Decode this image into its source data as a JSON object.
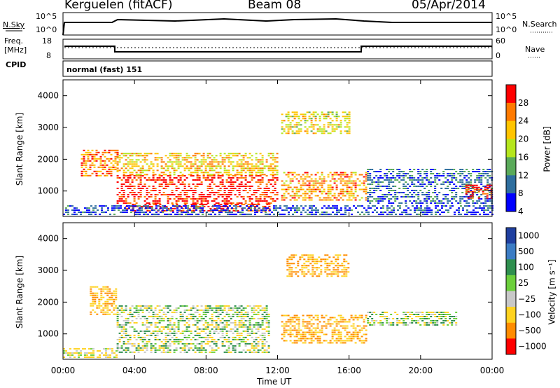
{
  "header": {
    "title": "Kerguelen (fitACF)",
    "beam": "Beam 08",
    "date": "05/Apr/2014"
  },
  "nsky_panel": {
    "left_label": "N.Sky",
    "right_label": "N.Search",
    "tick_hi": "10^5",
    "tick_lo": "10^0"
  },
  "freq_panel": {
    "left_label_1": "Freq.",
    "left_label_2": "[MHz]",
    "left_ticks": [
      "18",
      "8"
    ],
    "right_ticks": [
      "60",
      "0"
    ],
    "right_label": "Nave"
  },
  "cpid": {
    "label": "CPID",
    "value": "normal (fast) 151"
  },
  "axes": {
    "ylabel": "Slant Range [km]",
    "xlabel": "Time UT",
    "y_ticks": [
      "4000",
      "3000",
      "2000",
      "1000"
    ],
    "x_ticks": [
      "00:00",
      "04:00",
      "08:00",
      "12:00",
      "16:00",
      "20:00",
      "00:00"
    ]
  },
  "chart_data": [
    {
      "type": "heatmap",
      "name": "power",
      "ylabel": "Slant Range [km]",
      "xlabel": "Time UT",
      "xlim_hours": [
        0,
        24
      ],
      "ylim": [
        200,
        4500
      ],
      "colorbar": {
        "label": "Power [dB]",
        "ticks": [
          "28",
          "24",
          "20",
          "16",
          "12",
          "8",
          "4"
        ],
        "colors": [
          "#ff0000",
          "#ff7a00",
          "#ffc400",
          "#b5e61d",
          "#5aaa5a",
          "#2e6e9e",
          "#0000ff"
        ]
      },
      "regions": [
        {
          "t": [
            3.0,
            12.0
          ],
          "r": [
            600,
            1500
          ],
          "level": 28
        },
        {
          "t": [
            3.5,
            11.5
          ],
          "r": [
            400,
            600
          ],
          "level": 28
        },
        {
          "t": [
            3.0,
            12.0
          ],
          "r": [
            1500,
            2200
          ],
          "level": 20
        },
        {
          "t": [
            12.2,
            17.0
          ],
          "r": [
            700,
            1600
          ],
          "level": 22
        },
        {
          "t": [
            12.2,
            16.0
          ],
          "r": [
            2800,
            3500
          ],
          "level": 18
        },
        {
          "t": [
            17.0,
            24.0
          ],
          "r": [
            600,
            1700
          ],
          "level": 8
        },
        {
          "t": [
            0.0,
            24.0
          ],
          "r": [
            250,
            550
          ],
          "level": 6
        },
        {
          "t": [
            1.0,
            3.0
          ],
          "r": [
            1500,
            2300
          ],
          "level": 24
        },
        {
          "t": [
            22.5,
            24.0
          ],
          "r": [
            800,
            1200
          ],
          "level": 28
        }
      ]
    },
    {
      "type": "heatmap",
      "name": "velocity",
      "ylabel": "Slant Range [km]",
      "xlabel": "Time UT",
      "xlim_hours": [
        0,
        24
      ],
      "ylim": [
        200,
        4500
      ],
      "colorbar": {
        "label": "Velocity [m s⁻¹]",
        "ticks": [
          "1000",
          "500",
          "100",
          "25",
          "−25",
          "−100",
          "−500",
          "−1000"
        ],
        "colors": [
          "#1f3f9f",
          "#3b7cc4",
          "#2f8f4f",
          "#6ccf3c",
          "#c8c8c8",
          "#ffd21f",
          "#ff8c00",
          "#ff0000"
        ]
      },
      "regions": [
        {
          "t": [
            3.0,
            11.5
          ],
          "r": [
            400,
            1900
          ],
          "velocity": 0
        },
        {
          "t": [
            12.2,
            17.0
          ],
          "r": [
            700,
            1600
          ],
          "velocity": -300
        },
        {
          "t": [
            17.0,
            22.0
          ],
          "r": [
            1300,
            1700
          ],
          "velocity": 0
        },
        {
          "t": [
            12.5,
            16.0
          ],
          "r": [
            2800,
            3500
          ],
          "velocity": -300
        },
        {
          "t": [
            0.0,
            3.0
          ],
          "r": [
            250,
            550
          ],
          "velocity": -100
        },
        {
          "t": [
            1.5,
            3.0
          ],
          "r": [
            1600,
            2500
          ],
          "velocity": -300
        }
      ]
    }
  ]
}
